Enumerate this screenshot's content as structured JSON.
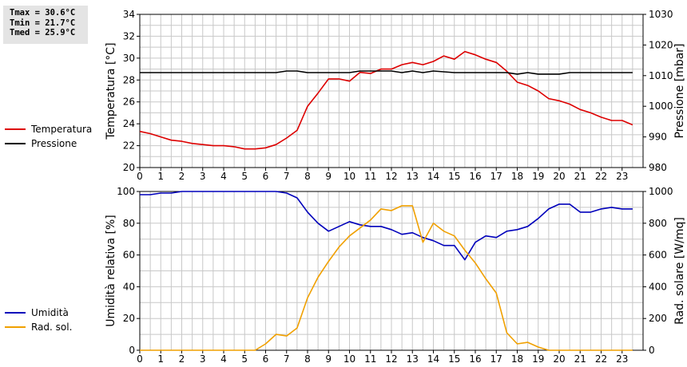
{
  "stats": {
    "tmax": "Tmax = 30.6°C",
    "tmin": "Tmin = 21.7°C",
    "tmed": "Tmed = 25.9°C"
  },
  "colors": {
    "temperature": "#dd0000",
    "pressure": "#000000",
    "humidity": "#0000bb",
    "solar": "#f0a000",
    "grid": "#c8c8c8"
  },
  "legend_top": [
    {
      "label": "Temperatura",
      "color": "#dd0000"
    },
    {
      "label": "Pressione",
      "color": "#000000"
    }
  ],
  "legend_bottom": [
    {
      "label": "Umidità",
      "color": "#0000bb"
    },
    {
      "label": "Rad. sol.",
      "color": "#f0a000"
    }
  ],
  "chart_data": [
    {
      "type": "line",
      "ylabel": "Temperatura [°C]",
      "y2label": "Pressione [mbar]",
      "xlim": [
        0,
        24
      ],
      "ylim": [
        20,
        34
      ],
      "y2lim": [
        980,
        1030
      ],
      "xticks": [
        "0",
        "1",
        "2",
        "3",
        "4",
        "5",
        "6",
        "7",
        "8",
        "9",
        "10",
        "11",
        "12",
        "13",
        "14",
        "15",
        "16",
        "17",
        "18",
        "19",
        "20",
        "21",
        "22",
        "23"
      ],
      "yticks": [
        "20",
        "22",
        "24",
        "26",
        "28",
        "30",
        "32",
        "34"
      ],
      "y2ticks": [
        "980",
        "990",
        "1000",
        "1010",
        "1020",
        "1030"
      ],
      "grid": true,
      "series": [
        {
          "name": "Temperatura",
          "axis": "left",
          "x": [
            0,
            0.5,
            1,
            1.5,
            2,
            2.5,
            3,
            3.5,
            4,
            4.5,
            5,
            5.5,
            6,
            6.5,
            7,
            7.5,
            8,
            8.5,
            9,
            9.5,
            10,
            10.5,
            11,
            11.5,
            12,
            12.5,
            13,
            13.5,
            14,
            14.5,
            15,
            15.5,
            16,
            16.5,
            17,
            17.5,
            18,
            18.5,
            19,
            19.5,
            20,
            20.5,
            21,
            21.5,
            22,
            22.5,
            23,
            23.5
          ],
          "values": [
            23.3,
            23.1,
            22.8,
            22.5,
            22.4,
            22.2,
            22.1,
            22.0,
            22.0,
            21.9,
            21.7,
            21.7,
            21.8,
            22.1,
            22.7,
            23.4,
            25.6,
            26.8,
            28.1,
            28.1,
            27.9,
            28.7,
            28.6,
            29.0,
            29.0,
            29.4,
            29.6,
            29.4,
            29.7,
            30.2,
            29.9,
            30.6,
            30.3,
            29.9,
            29.6,
            28.8,
            27.8,
            27.5,
            27.0,
            26.3,
            26.1,
            25.8,
            25.3,
            25.0,
            24.6,
            24.3,
            24.3,
            23.9
          ]
        },
        {
          "name": "Pressione",
          "axis": "right",
          "x": [
            0,
            6.5,
            7,
            7.5,
            8,
            9,
            10,
            10.5,
            12,
            12.5,
            13,
            13.5,
            14,
            15,
            17,
            17.5,
            18,
            18.5,
            19,
            20,
            20.5,
            23.5
          ],
          "values": [
            1011,
            1011,
            1011.5,
            1011.5,
            1011,
            1011,
            1011,
            1011.5,
            1011.5,
            1011,
            1011.5,
            1011,
            1011.5,
            1011,
            1011,
            1011,
            1010.5,
            1011,
            1010.5,
            1010.5,
            1011,
            1011
          ]
        }
      ]
    },
    {
      "type": "line",
      "ylabel": "Umidità relativa [%]",
      "y2label": "Rad. solare [W/mq]",
      "xlim": [
        0,
        24
      ],
      "ylim": [
        0,
        100
      ],
      "y2lim": [
        0,
        1000
      ],
      "xticks": [
        "0",
        "1",
        "2",
        "3",
        "4",
        "5",
        "6",
        "7",
        "8",
        "9",
        "10",
        "11",
        "12",
        "13",
        "14",
        "15",
        "16",
        "17",
        "18",
        "19",
        "20",
        "21",
        "22",
        "23"
      ],
      "yticks": [
        "0",
        "20",
        "40",
        "60",
        "80",
        "100"
      ],
      "y2ticks": [
        "0",
        "200",
        "400",
        "600",
        "800",
        "1000"
      ],
      "grid": true,
      "series": [
        {
          "name": "Umidità",
          "axis": "left",
          "x": [
            0,
            0.5,
            1,
            1.5,
            2,
            6.5,
            7,
            7.5,
            8,
            8.5,
            9,
            9.5,
            10,
            10.5,
            11,
            11.5,
            12,
            12.5,
            13,
            13.5,
            14,
            14.5,
            15,
            15.5,
            16,
            16.5,
            17,
            17.5,
            18,
            18.5,
            19,
            19.5,
            20,
            20.5,
            21,
            21.5,
            22,
            22.5,
            23,
            23.5
          ],
          "values": [
            98,
            98,
            99,
            99,
            100,
            100,
            99,
            96,
            87,
            80,
            75,
            78,
            81,
            79,
            78,
            78,
            76,
            73,
            74,
            71,
            69,
            66,
            66,
            57,
            68,
            72,
            71,
            75,
            76,
            78,
            83,
            89,
            92,
            92,
            87,
            87,
            89,
            90,
            89,
            89
          ]
        },
        {
          "name": "Rad. sol.",
          "axis": "right",
          "x": [
            0,
            5.5,
            6,
            6.5,
            7,
            7.5,
            8,
            8.5,
            9,
            9.5,
            10,
            10.5,
            11,
            11.5,
            12,
            12.5,
            13,
            13.5,
            14,
            14.5,
            15,
            15.5,
            16,
            16.5,
            17,
            17.5,
            18,
            18.5,
            19,
            19.5,
            23.5
          ],
          "values": [
            0,
            0,
            40,
            100,
            90,
            140,
            330,
            460,
            560,
            650,
            720,
            770,
            820,
            890,
            880,
            910,
            910,
            680,
            800,
            750,
            720,
            630,
            550,
            450,
            360,
            110,
            40,
            50,
            20,
            0,
            0
          ]
        }
      ]
    }
  ]
}
